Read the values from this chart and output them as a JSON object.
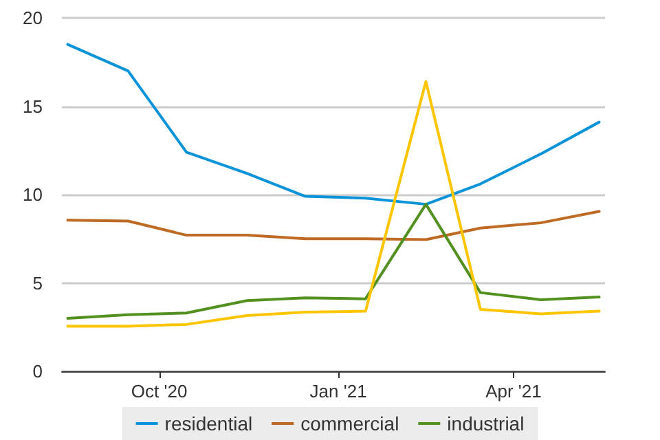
{
  "chart_data": {
    "type": "line",
    "x": [
      "2020-08-15",
      "2020-09-15",
      "2020-10-15",
      "2020-11-15",
      "2020-12-15",
      "2021-01-15",
      "2021-02-15",
      "2021-03-15",
      "2021-04-15",
      "2021-05-15"
    ],
    "series": [
      {
        "name": "residential",
        "color": "#0a93d8",
        "values": [
          18.5,
          17.0,
          12.4,
          11.2,
          9.9,
          9.8,
          9.45,
          10.6,
          12.3,
          14.1
        ]
      },
      {
        "name": "commercial",
        "color": "#bf6a24",
        "values": [
          8.55,
          8.5,
          7.7,
          7.7,
          7.5,
          7.5,
          7.45,
          8.1,
          8.4,
          9.05
        ]
      },
      {
        "name": "industrial",
        "color": "#52901f",
        "values": [
          3.0,
          3.2,
          3.3,
          4.0,
          4.15,
          4.1,
          9.45,
          4.45,
          4.05,
          4.2
        ]
      },
      {
        "color": "#fcc500",
        "values": [
          2.55,
          2.55,
          2.65,
          3.15,
          3.35,
          3.4,
          16.4,
          3.5,
          3.25,
          3.4
        ]
      }
    ],
    "xlim": [
      "2020-08-12",
      "2021-05-18"
    ],
    "xticks": [
      {
        "value": "2020-10-01",
        "label": "Oct '20"
      },
      {
        "value": "2021-01-01",
        "label": "Jan '21"
      },
      {
        "value": "2021-04-01",
        "label": "Apr '21"
      }
    ],
    "ylim": [
      0,
      20
    ],
    "yticks": [
      0,
      5,
      10,
      15,
      20
    ],
    "grid": "y",
    "legend": "bottom",
    "marker": "none",
    "line_style": "solid"
  }
}
